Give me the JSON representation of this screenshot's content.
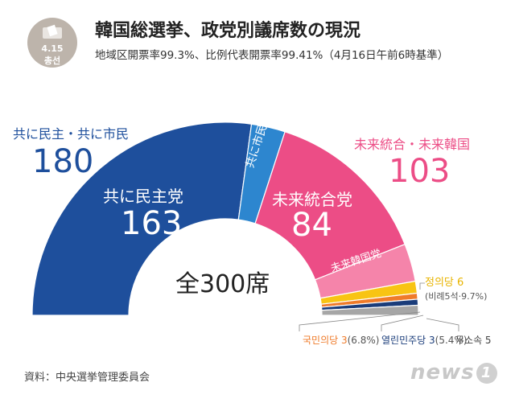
{
  "header": {
    "badge_line1": "4.15",
    "badge_line2": "총선",
    "title": "韓国総選挙、政党別議席数の現況",
    "subtitle": "地域区開票率99.3%、比例代表開票率99.41%（4月16日午前6時基準）"
  },
  "chart_data": {
    "type": "pie",
    "shape": "semicircle",
    "total": 300,
    "center_label": "全300席",
    "slices": [
      {
        "name": "共に民主党",
        "value": 163,
        "color": "#1e4f9c"
      },
      {
        "name": "共に市民党",
        "value": 17,
        "color": "#2d86cf"
      },
      {
        "name": "未来統合党",
        "value": 84,
        "color": "#ec4d86"
      },
      {
        "name": "未来韓国党",
        "value": 19,
        "color": "#f584aa"
      },
      {
        "name": "정의당",
        "value": 6,
        "color": "#f8c414"
      },
      {
        "name": "국민의당",
        "value": 3,
        "color": "#ef7b2a"
      },
      {
        "name": "열린민주당",
        "value": 3,
        "color": "#1a3c7a"
      },
      {
        "name": "무소속",
        "value": 5,
        "color": "#a6a6a6"
      }
    ],
    "groups": [
      {
        "name": "共に民主・共に市民",
        "value": "180",
        "color": "#1e4f9c"
      },
      {
        "name": "未来統合・未来韓国",
        "value": "103",
        "color": "#ec4d86"
      }
    ],
    "annotations": {
      "democratic_name": "共に民主党",
      "democratic_value": "163",
      "civic_name": "共に市民党",
      "unified_name": "未来統合党",
      "unified_value": "84",
      "korea_name": "未来韓国党",
      "justice_label": "정의당 6",
      "justice_note": "(비례5석·9.7%)",
      "people_label": "국민의당 3",
      "people_note": "(6.8%)",
      "open_label": "열린민주당 3",
      "open_note": "(5.4%)",
      "independent_label": "무소속 5"
    }
  },
  "footer": {
    "source": "資料：中央選挙管理委員会",
    "logo_text": "news",
    "logo_mark": "1"
  }
}
